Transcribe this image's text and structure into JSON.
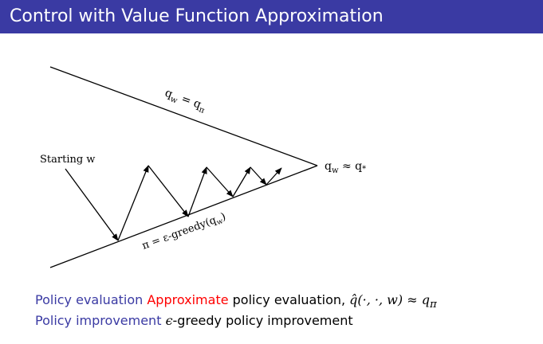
{
  "slide": {
    "title": "Control with Value Function Approximation"
  },
  "diagram": {
    "label_top": "q",
    "label_top_sub": "w",
    "label_top_eq": " = q",
    "label_top_sub2": "π",
    "starting": "Starting w",
    "label_bottom_pre": "π = ε-greedy(q",
    "label_bottom_sub": "w",
    "label_bottom_post": ")",
    "converge_q": "q",
    "converge_sub": "w",
    "converge_rest": " ≈ q",
    "converge_star": "*"
  },
  "bullets": [
    {
      "label": "Policy evaluation",
      "alert": "Approximate",
      "text": " policy evaluation, ",
      "math": "q̂(·, ·, w) ≈ q",
      "math_sub": "π"
    },
    {
      "label": "Policy improvement",
      "math": "ϵ",
      "text": "-greedy policy improvement"
    }
  ]
}
